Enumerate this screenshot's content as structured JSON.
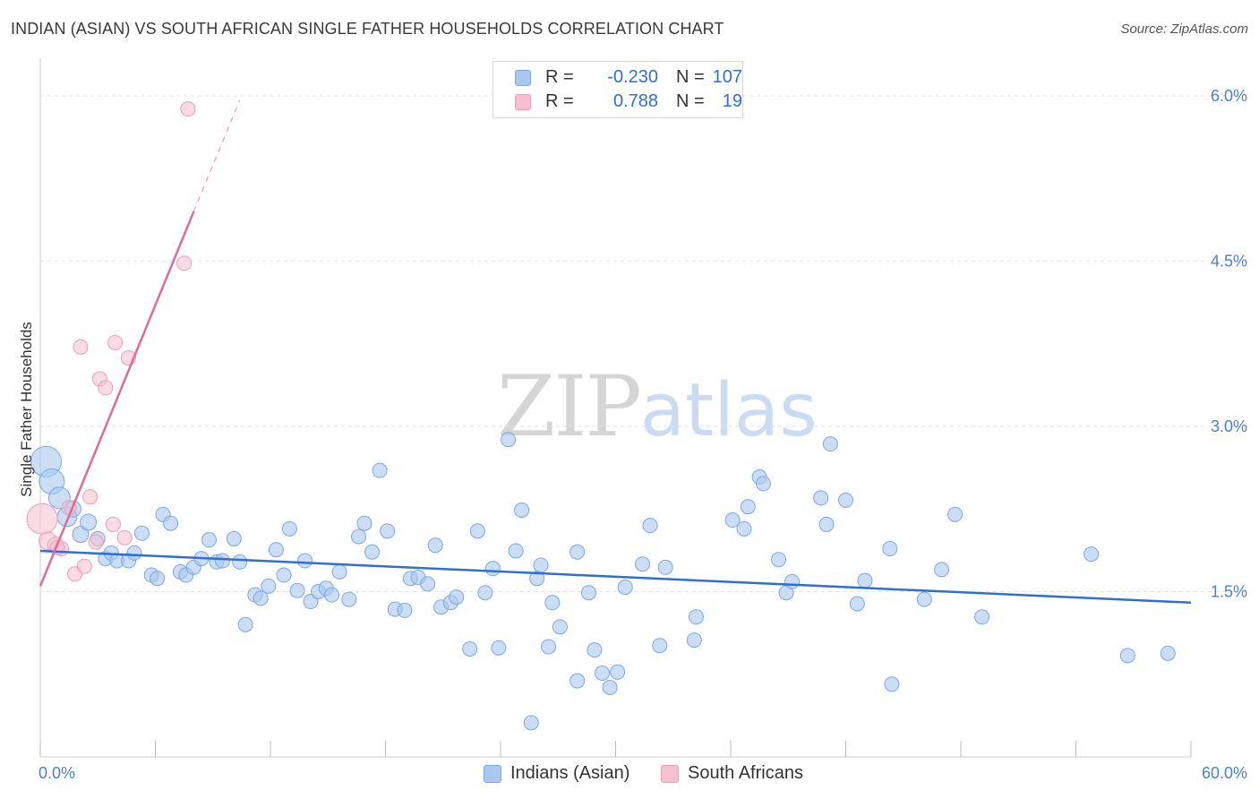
{
  "header": {
    "title": "INDIAN (ASIAN) VS SOUTH AFRICAN SINGLE FATHER HOUSEHOLDS CORRELATION CHART",
    "source": "Source: ZipAtlas.com"
  },
  "watermark": {
    "zip": "ZIP",
    "atlas": "atlas"
  },
  "legend": {
    "rows": [
      {
        "r_label": "R =",
        "r_value": "-0.230",
        "n_label": "N =",
        "n_value": "107",
        "color": "#a9c8f0",
        "border": "#7aa7e2"
      },
      {
        "r_label": "R =",
        "r_value": "0.788",
        "n_label": "N =",
        "n_value": "19",
        "color": "#f7bfd0",
        "border": "#ef9ab5"
      }
    ]
  },
  "bottom_legend": {
    "items": [
      {
        "label": "Indians (Asian)",
        "color": "#a9c8f0",
        "border": "#7aa7e2"
      },
      {
        "label": "South Africans",
        "color": "#f7bfd0",
        "border": "#ef9ab5"
      }
    ]
  },
  "chart_data": {
    "type": "scatter",
    "title": "INDIAN (ASIAN) VS SOUTH AFRICAN SINGLE FATHER HOUSEHOLDS CORRELATION CHART",
    "xlabel": "",
    "ylabel": "Single Father Households",
    "xlim": [
      0,
      60
    ],
    "ylim": [
      0,
      6.3
    ],
    "x_tick_labels": [
      "0.0%",
      "60.0%"
    ],
    "y_ticks": [
      1.5,
      3.0,
      4.5,
      6.0
    ],
    "y_tick_labels": [
      "1.5%",
      "3.0%",
      "4.5%",
      "6.0%"
    ],
    "grid": "horizontal dashed",
    "legend_position": "top-center",
    "colors": {
      "indians": "#7aa7e2",
      "indians_fill": "#a9c8f0",
      "indians_line": "#2f6fd0",
      "sa": "#ef9ab5",
      "sa_fill": "#f7bfd0",
      "sa_line": "#e06c96"
    },
    "series": [
      {
        "name": "Indians (Asian)",
        "trend": {
          "x": [
            0,
            60
          ],
          "y": [
            1.87,
            1.4
          ]
        },
        "points": [
          {
            "x": 0.3,
            "y": 2.68,
            "s": 17
          },
          {
            "x": 0.6,
            "y": 2.5,
            "s": 14
          },
          {
            "x": 1.0,
            "y": 2.35,
            "s": 12
          },
          {
            "x": 1.4,
            "y": 2.18,
            "s": 11
          },
          {
            "x": 1.7,
            "y": 2.25,
            "s": 9
          },
          {
            "x": 2.1,
            "y": 2.02,
            "s": 9
          },
          {
            "x": 2.5,
            "y": 2.13,
            "s": 9
          },
          {
            "x": 3.0,
            "y": 1.98,
            "s": 8
          },
          {
            "x": 3.4,
            "y": 1.8,
            "s": 8
          },
          {
            "x": 3.7,
            "y": 1.85,
            "s": 8
          },
          {
            "x": 4.0,
            "y": 1.78,
            "s": 8
          },
          {
            "x": 4.6,
            "y": 1.78,
            "s": 8
          },
          {
            "x": 4.9,
            "y": 1.85,
            "s": 8
          },
          {
            "x": 5.3,
            "y": 2.03,
            "s": 8
          },
          {
            "x": 5.8,
            "y": 1.65,
            "s": 8
          },
          {
            "x": 6.1,
            "y": 1.62,
            "s": 8
          },
          {
            "x": 6.4,
            "y": 2.2,
            "s": 8
          },
          {
            "x": 6.8,
            "y": 2.12,
            "s": 8
          },
          {
            "x": 7.3,
            "y": 1.68,
            "s": 8
          },
          {
            "x": 7.6,
            "y": 1.65,
            "s": 8
          },
          {
            "x": 8.0,
            "y": 1.72,
            "s": 8
          },
          {
            "x": 8.4,
            "y": 1.8,
            "s": 8
          },
          {
            "x": 8.8,
            "y": 1.97,
            "s": 8
          },
          {
            "x": 9.2,
            "y": 1.77,
            "s": 8
          },
          {
            "x": 9.5,
            "y": 1.78,
            "s": 8
          },
          {
            "x": 10.1,
            "y": 1.98,
            "s": 8
          },
          {
            "x": 10.4,
            "y": 1.77,
            "s": 8
          },
          {
            "x": 10.7,
            "y": 1.2,
            "s": 8
          },
          {
            "x": 11.2,
            "y": 1.47,
            "s": 8
          },
          {
            "x": 11.5,
            "y": 1.44,
            "s": 8
          },
          {
            "x": 11.9,
            "y": 1.55,
            "s": 8
          },
          {
            "x": 12.3,
            "y": 1.88,
            "s": 8
          },
          {
            "x": 12.7,
            "y": 1.65,
            "s": 8
          },
          {
            "x": 13.0,
            "y": 2.07,
            "s": 8
          },
          {
            "x": 13.4,
            "y": 1.51,
            "s": 8
          },
          {
            "x": 13.8,
            "y": 1.78,
            "s": 8
          },
          {
            "x": 14.1,
            "y": 1.41,
            "s": 8
          },
          {
            "x": 14.5,
            "y": 1.5,
            "s": 8
          },
          {
            "x": 14.9,
            "y": 1.53,
            "s": 8
          },
          {
            "x": 15.2,
            "y": 1.47,
            "s": 8
          },
          {
            "x": 15.6,
            "y": 1.68,
            "s": 8
          },
          {
            "x": 16.1,
            "y": 1.43,
            "s": 8
          },
          {
            "x": 16.6,
            "y": 2.0,
            "s": 8
          },
          {
            "x": 16.9,
            "y": 2.12,
            "s": 8
          },
          {
            "x": 17.3,
            "y": 1.86,
            "s": 8
          },
          {
            "x": 17.7,
            "y": 2.6,
            "s": 8
          },
          {
            "x": 18.1,
            "y": 2.05,
            "s": 8
          },
          {
            "x": 18.5,
            "y": 1.34,
            "s": 8
          },
          {
            "x": 19.0,
            "y": 1.33,
            "s": 8
          },
          {
            "x": 19.3,
            "y": 1.62,
            "s": 8
          },
          {
            "x": 19.7,
            "y": 1.63,
            "s": 8
          },
          {
            "x": 20.2,
            "y": 1.57,
            "s": 8
          },
          {
            "x": 20.6,
            "y": 1.92,
            "s": 8
          },
          {
            "x": 20.9,
            "y": 1.36,
            "s": 8
          },
          {
            "x": 21.4,
            "y": 1.4,
            "s": 8
          },
          {
            "x": 21.7,
            "y": 1.45,
            "s": 8
          },
          {
            "x": 22.4,
            "y": 0.98,
            "s": 8
          },
          {
            "x": 22.8,
            "y": 2.05,
            "s": 8
          },
          {
            "x": 23.2,
            "y": 1.49,
            "s": 8
          },
          {
            "x": 23.6,
            "y": 1.71,
            "s": 8
          },
          {
            "x": 23.9,
            "y": 0.99,
            "s": 8
          },
          {
            "x": 24.4,
            "y": 2.88,
            "s": 8
          },
          {
            "x": 24.8,
            "y": 1.87,
            "s": 8
          },
          {
            "x": 25.1,
            "y": 2.24,
            "s": 8
          },
          {
            "x": 25.6,
            "y": 0.31,
            "s": 8
          },
          {
            "x": 25.9,
            "y": 1.62,
            "s": 8
          },
          {
            "x": 26.1,
            "y": 1.74,
            "s": 8
          },
          {
            "x": 26.5,
            "y": 1.0,
            "s": 8
          },
          {
            "x": 26.7,
            "y": 1.4,
            "s": 8
          },
          {
            "x": 27.1,
            "y": 1.18,
            "s": 8
          },
          {
            "x": 28.0,
            "y": 0.69,
            "s": 8
          },
          {
            "x": 28.0,
            "y": 1.86,
            "s": 8
          },
          {
            "x": 28.6,
            "y": 1.49,
            "s": 8
          },
          {
            "x": 28.9,
            "y": 0.97,
            "s": 8
          },
          {
            "x": 29.3,
            "y": 0.76,
            "s": 8
          },
          {
            "x": 29.7,
            "y": 0.63,
            "s": 8
          },
          {
            "x": 30.1,
            "y": 0.77,
            "s": 8
          },
          {
            "x": 30.5,
            "y": 1.54,
            "s": 8
          },
          {
            "x": 31.4,
            "y": 1.75,
            "s": 8
          },
          {
            "x": 31.8,
            "y": 2.1,
            "s": 8
          },
          {
            "x": 32.3,
            "y": 1.01,
            "s": 8
          },
          {
            "x": 32.6,
            "y": 1.72,
            "s": 8
          },
          {
            "x": 34.1,
            "y": 1.06,
            "s": 8
          },
          {
            "x": 34.2,
            "y": 1.27,
            "s": 8
          },
          {
            "x": 36.1,
            "y": 2.15,
            "s": 8
          },
          {
            "x": 36.7,
            "y": 2.07,
            "s": 8
          },
          {
            "x": 36.9,
            "y": 2.27,
            "s": 8
          },
          {
            "x": 37.5,
            "y": 2.54,
            "s": 8
          },
          {
            "x": 37.7,
            "y": 2.48,
            "s": 8
          },
          {
            "x": 38.5,
            "y": 1.79,
            "s": 8
          },
          {
            "x": 38.9,
            "y": 1.49,
            "s": 8
          },
          {
            "x": 39.2,
            "y": 1.59,
            "s": 8
          },
          {
            "x": 40.7,
            "y": 2.35,
            "s": 8
          },
          {
            "x": 41.0,
            "y": 2.11,
            "s": 8
          },
          {
            "x": 41.2,
            "y": 2.84,
            "s": 8
          },
          {
            "x": 42.0,
            "y": 2.33,
            "s": 8
          },
          {
            "x": 43.0,
            "y": 1.6,
            "s": 8
          },
          {
            "x": 42.6,
            "y": 1.39,
            "s": 8
          },
          {
            "x": 44.3,
            "y": 1.89,
            "s": 8
          },
          {
            "x": 44.4,
            "y": 0.66,
            "s": 8
          },
          {
            "x": 46.1,
            "y": 1.43,
            "s": 8
          },
          {
            "x": 47.0,
            "y": 1.7,
            "s": 8
          },
          {
            "x": 47.7,
            "y": 2.2,
            "s": 8
          },
          {
            "x": 49.1,
            "y": 1.27,
            "s": 8
          },
          {
            "x": 54.8,
            "y": 1.84,
            "s": 8
          },
          {
            "x": 56.7,
            "y": 0.92,
            "s": 8
          },
          {
            "x": 58.8,
            "y": 0.94,
            "s": 8
          }
        ]
      },
      {
        "name": "South Africans",
        "trend": {
          "x": [
            0,
            8.0
          ],
          "y": [
            1.55,
            4.95
          ]
        },
        "trend_dashed": {
          "x": [
            8.0,
            10.4
          ],
          "y": [
            4.95,
            5.96
          ]
        },
        "points": [
          {
            "x": 0.1,
            "y": 2.16,
            "s": 17
          },
          {
            "x": 0.4,
            "y": 1.96,
            "s": 10
          },
          {
            "x": 0.8,
            "y": 1.92,
            "s": 9
          },
          {
            "x": 1.1,
            "y": 1.89,
            "s": 8
          },
          {
            "x": 1.5,
            "y": 2.26,
            "s": 8
          },
          {
            "x": 1.8,
            "y": 1.66,
            "s": 8
          },
          {
            "x": 2.1,
            "y": 3.72,
            "s": 8
          },
          {
            "x": 2.3,
            "y": 1.73,
            "s": 8
          },
          {
            "x": 2.6,
            "y": 2.36,
            "s": 8
          },
          {
            "x": 2.9,
            "y": 1.95,
            "s": 8
          },
          {
            "x": 3.1,
            "y": 3.43,
            "s": 8
          },
          {
            "x": 3.4,
            "y": 3.35,
            "s": 8
          },
          {
            "x": 3.8,
            "y": 2.11,
            "s": 8
          },
          {
            "x": 3.9,
            "y": 3.76,
            "s": 8
          },
          {
            "x": 4.4,
            "y": 1.99,
            "s": 8
          },
          {
            "x": 4.6,
            "y": 3.62,
            "s": 8
          },
          {
            "x": 7.5,
            "y": 4.48,
            "s": 8
          },
          {
            "x": 7.7,
            "y": 5.88,
            "s": 8
          },
          {
            "x": 0.9,
            "y": 1.9,
            "s": 8
          }
        ]
      }
    ]
  }
}
